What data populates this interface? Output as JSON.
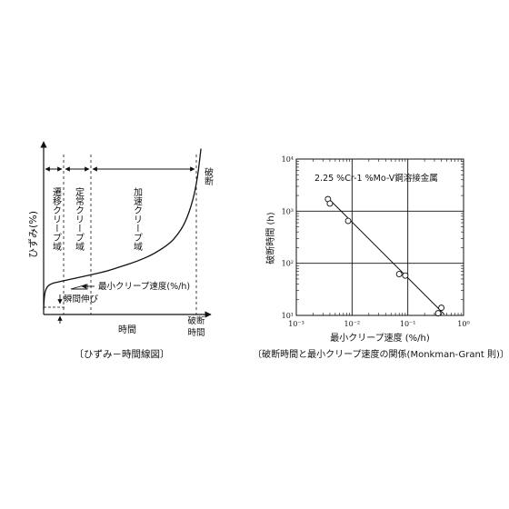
{
  "left_figure": {
    "caption": "〔ひずみ－時間線図〕",
    "ylabel": "ひずみ(%)",
    "xlabel": "時間",
    "regions": [
      "遷移クリープ域",
      "定常クリープ域",
      "加速クリープ域"
    ],
    "rupture_label": "破断",
    "rupture_time_label": "破断時間",
    "min_rate_label": "最小クリープ速度(%/h)",
    "instant_label": "瞬間伸び"
  },
  "right_figure": {
    "caption": "〔破断時間と最小クリープ速度の関係(Monkman-Grant 則)〕",
    "legend_text": "2.25 %Cr-1 %Mo-V鋼溶接金属"
  },
  "chart_data": [
    {
      "type": "line",
      "title": "",
      "xlabel": "時間",
      "ylabel": "ひずみ(%)",
      "series": [
        {
          "x": [
            0,
            0.005,
            0.02,
            0.05,
            0.1,
            0.2,
            0.3,
            0.4,
            0.5,
            0.6,
            0.7,
            0.8,
            0.85,
            0.9,
            0.95,
            0.98,
            1.0
          ],
          "y": [
            0.03,
            0.12,
            0.16,
            0.18,
            0.19,
            0.21,
            0.23,
            0.25,
            0.28,
            0.31,
            0.35,
            0.41,
            0.46,
            0.53,
            0.66,
            0.8,
            0.96
          ]
        }
      ],
      "xlim": [
        0,
        1.04
      ],
      "ylim": [
        0,
        1.0
      ]
    },
    {
      "type": "scatter",
      "title": "",
      "xlabel": "最小クリープ速度 (%/h)",
      "ylabel": "破断時間 (h)",
      "xscale": "log",
      "yscale": "log",
      "xlim": [
        0.001,
        1
      ],
      "ylim": [
        10,
        10000
      ],
      "xticks": [
        "10⁻³",
        "10⁻²",
        "10⁻¹",
        "10⁰"
      ],
      "yticks": [
        "10¹",
        "10²",
        "10³",
        "10⁴"
      ],
      "grid": true,
      "series": [
        {
          "x": [
            0.0037,
            0.004,
            0.0085,
            0.07,
            0.09,
            0.35,
            0.4
          ],
          "y": [
            1700,
            1400,
            650,
            62,
            58,
            11,
            14
          ]
        }
      ],
      "fit_line": {
        "x": [
          0.0035,
          0.45
        ],
        "y": [
          1900,
          10.5
        ]
      }
    }
  ]
}
